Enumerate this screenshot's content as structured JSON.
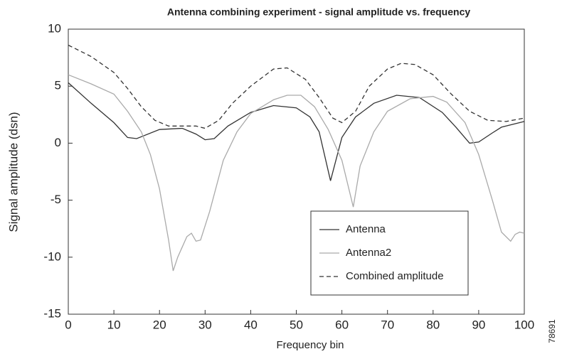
{
  "chart_data": {
    "type": "line",
    "title": "Antenna combining experiment - signal amplitude vs. frequency",
    "x_label": "Frequency bin",
    "y_label": "Signal amplitude (dsn)",
    "annotation": "78691",
    "xlim": [
      0,
      100
    ],
    "ylim": [
      -15,
      10
    ],
    "xticks": [
      0,
      10,
      20,
      30,
      40,
      50,
      60,
      70,
      80,
      90,
      100
    ],
    "yticks": [
      -15,
      -10,
      -5,
      0,
      5,
      10
    ],
    "grid": false,
    "series": [
      {
        "name": "Antenna",
        "color": "#333333",
        "dash": false,
        "x": [
          0,
          5,
          10,
          13,
          15,
          20,
          25,
          28,
          30,
          32,
          35,
          40,
          45,
          50,
          53,
          55,
          57.5,
          60,
          63,
          67,
          72,
          77,
          82,
          85,
          88,
          90,
          93,
          95,
          100
        ],
        "values": [
          5.3,
          3.5,
          1.8,
          0.5,
          0.4,
          1.2,
          1.3,
          0.8,
          0.3,
          0.4,
          1.5,
          2.7,
          3.3,
          3.1,
          2.3,
          1.0,
          -3.3,
          0.5,
          2.3,
          3.5,
          4.2,
          4.0,
          2.7,
          1.4,
          0.0,
          0.1,
          0.9,
          1.4,
          1.9
        ]
      },
      {
        "name": "Antenna2",
        "color": "#aaaaaa",
        "dash": false,
        "x": [
          0,
          5,
          10,
          13,
          16,
          18,
          20,
          22,
          23,
          24,
          26,
          27,
          28,
          29,
          31,
          34,
          37,
          40,
          45,
          48,
          51,
          54,
          57,
          60,
          62.5,
          64,
          67,
          70,
          75,
          80,
          83,
          87,
          90,
          93,
          95,
          97,
          98,
          99,
          100
        ],
        "values": [
          6.0,
          5.2,
          4.3,
          2.8,
          1.0,
          -1.0,
          -4.0,
          -8.5,
          -11.2,
          -10.0,
          -8.2,
          -7.9,
          -8.6,
          -8.5,
          -6.0,
          -1.5,
          1.0,
          2.6,
          3.8,
          4.2,
          4.2,
          3.2,
          1.2,
          -1.5,
          -5.6,
          -2.0,
          1.0,
          2.8,
          3.9,
          4.1,
          3.6,
          1.8,
          -1.0,
          -5.0,
          -7.8,
          -8.6,
          -8.0,
          -7.8,
          -7.9
        ]
      },
      {
        "name": "Combined amplitude",
        "color": "#333333",
        "dash": true,
        "x": [
          0,
          5,
          10,
          13,
          16,
          19,
          22,
          25,
          28,
          30,
          33,
          36,
          40,
          45,
          48,
          52,
          55,
          58,
          60,
          63,
          66,
          70,
          73,
          76,
          80,
          84,
          88,
          92,
          96,
          100
        ],
        "values": [
          8.6,
          7.6,
          6.2,
          4.8,
          3.2,
          2.0,
          1.5,
          1.5,
          1.5,
          1.3,
          2.0,
          3.5,
          5.0,
          6.5,
          6.6,
          5.6,
          4.0,
          2.2,
          1.8,
          2.8,
          5.0,
          6.5,
          7.0,
          6.9,
          6.0,
          4.3,
          2.8,
          2.0,
          1.9,
          2.2
        ]
      }
    ]
  }
}
